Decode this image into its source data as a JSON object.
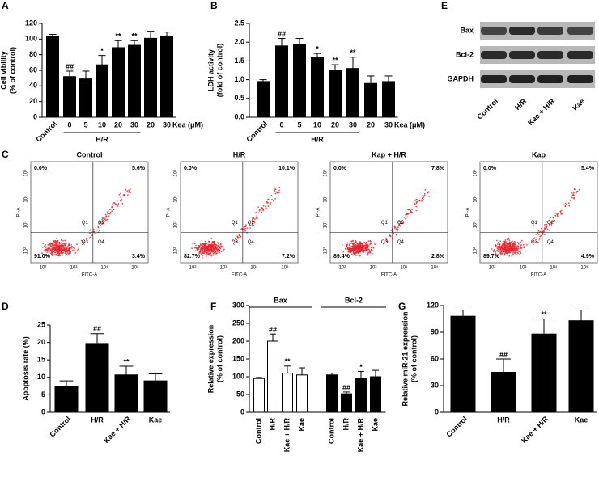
{
  "chart_data": [
    {
      "type": "bar",
      "panel": "A",
      "ylabel": [
        "Cell vibility",
        "(% of control)"
      ],
      "categories": [
        "Control",
        "0",
        "5",
        "10",
        "20",
        "30",
        "20",
        "30"
      ],
      "values": [
        103,
        52,
        49,
        67,
        89,
        92,
        101,
        104
      ],
      "errors": [
        3,
        7,
        10,
        12,
        9,
        6,
        9,
        5
      ],
      "annotations": [
        null,
        "##",
        null,
        "*",
        "**",
        "**",
        null,
        null
      ],
      "group_label": "H/R",
      "xlabel": "Kea (μM)",
      "color": "#000000",
      "ylim": [
        0,
        120
      ],
      "yticks": [
        0,
        20,
        40,
        60,
        80,
        100,
        120
      ]
    },
    {
      "type": "bar",
      "panel": "B",
      "ylabel": [
        "LDH activity",
        "(fold of control)"
      ],
      "categories": [
        "Control",
        "0",
        "5",
        "10",
        "20",
        "30",
        "20",
        "30"
      ],
      "values": [
        0.95,
        1.9,
        1.95,
        1.6,
        1.25,
        1.3,
        0.9,
        0.95
      ],
      "errors": [
        0.05,
        0.2,
        0.15,
        0.1,
        0.15,
        0.3,
        0.2,
        0.15
      ],
      "annotations": [
        null,
        "##",
        null,
        "*",
        "**",
        "**",
        null,
        null
      ],
      "group_label": "H/R",
      "xlabel": "Kea (μM)",
      "color": "#000000",
      "ylim": [
        0,
        2.5
      ],
      "yticks": [
        {
          "value": 0,
          "label": "0.0"
        },
        0.5,
        {
          "value": 1,
          "label": "1.0"
        },
        1.5,
        {
          "value": 2,
          "label": "2.0"
        },
        2.5
      ]
    },
    {
      "type": "blot",
      "panel": "E",
      "rows": [
        "Bax",
        "Bcl-2",
        "GAPDH"
      ],
      "lanes": [
        "Control",
        "H/R",
        "Kae + H/R",
        "Kae"
      ]
    },
    {
      "type": "flow",
      "panel": "C",
      "title": "Control",
      "quadrant_names": [
        "Q1",
        "Q2",
        "Q3",
        "Q4"
      ],
      "values": [
        0.0,
        5.6,
        91.0,
        3.4
      ],
      "value_labels": [
        "0.0%",
        "5.6%",
        "91.0%",
        "3.4%"
      ],
      "xlabel": "FITC-A",
      "ylabel": "PI-A",
      "xtick_labels": [
        "10²",
        "10³",
        "10⁴",
        "10⁵"
      ],
      "ytick_labels": [
        "10²",
        "10³",
        "10⁴",
        "10⁵"
      ]
    },
    {
      "type": "flow",
      "title": "H/R",
      "quadrant_names": [
        "Q1",
        "Q2",
        "Q3",
        "Q4"
      ],
      "values": [
        0.0,
        10.1,
        82.7,
        7.2
      ],
      "value_labels": [
        "0.0%",
        "10.1%",
        "82.7%",
        "7.2%"
      ],
      "xlabel": "FITC-A",
      "ylabel": "PI-A",
      "xtick_labels": [
        "10²",
        "10³",
        "10⁴",
        "10⁵"
      ],
      "ytick_labels": [
        "10²",
        "10³",
        "10⁴",
        "10⁵"
      ]
    },
    {
      "type": "flow",
      "title": "Kap + H/R",
      "quadrant_names": [
        "Q1",
        "Q2",
        "Q3",
        "Q4"
      ],
      "values": [
        0.0,
        7.8,
        89.4,
        2.8
      ],
      "value_labels": [
        "0.0%",
        "7.8%",
        "89.4%",
        "2.8%"
      ],
      "xlabel": "FITC-A",
      "ylabel": "PI-A",
      "xtick_labels": [
        "10²",
        "10³",
        "10⁴",
        "10⁵"
      ],
      "ytick_labels": [
        "10²",
        "10³",
        "10⁴",
        "10⁵"
      ]
    },
    {
      "type": "flow",
      "title": "Kap",
      "quadrant_names": [
        "Q1",
        "Q2",
        "Q3",
        "Q4"
      ],
      "values": [
        0.0,
        5.4,
        89.7,
        4.9
      ],
      "value_labels": [
        "0.0%",
        "5.4%",
        "89.7%",
        "4.9%"
      ],
      "xlabel": "FITC-A",
      "ylabel": "PI-A",
      "xtick_labels": [
        "10²",
        "10³",
        "10⁴",
        "10⁵"
      ],
      "ytick_labels": [
        "10²",
        "10³",
        "10⁴",
        "10⁵"
      ]
    },
    {
      "type": "bar",
      "panel": "D",
      "ylabel": "Apoptosis rate (%)",
      "categories": [
        "Control",
        "H/R",
        "Kae + H/R",
        "Kae"
      ],
      "values": [
        7.5,
        19.7,
        10.7,
        9.0
      ],
      "errors": [
        1.5,
        2.8,
        2.5,
        2.0
      ],
      "annotations": [
        null,
        "##",
        "**",
        null
      ],
      "color": "#000000",
      "ylim": [
        0,
        25
      ],
      "yticks": [
        0,
        5,
        10,
        15,
        20,
        25
      ]
    },
    {
      "type": "grouped",
      "panel": "F",
      "ylabel": [
        "Relative expression",
        "(% of control)"
      ],
      "categories": [
        "Control",
        "H/R",
        "Kae + H/R",
        "Kae"
      ],
      "series": [
        {
          "name": "Bax",
          "color": "#ffffff",
          "values": [
            95,
            200,
            110,
            105
          ],
          "errors": [
            3,
            20,
            20,
            20
          ],
          "annotations": [
            null,
            "##",
            "**",
            null
          ]
        },
        {
          "name": "Bcl-2",
          "color": "#000000",
          "values": [
            105,
            52,
            95,
            100
          ],
          "errors": [
            5,
            5,
            20,
            18
          ],
          "annotations": [
            null,
            "##",
            "*",
            null
          ]
        }
      ],
      "ylim": [
        0,
        300
      ],
      "yticks": [
        0,
        50,
        100,
        150,
        200,
        250,
        300
      ]
    },
    {
      "type": "bar",
      "panel": "G",
      "ylabel": [
        "Relative miR-21 expression",
        "(% of control)"
      ],
      "categories": [
        "Control",
        "H/R",
        "Kae + H/R",
        "Kae"
      ],
      "values": [
        108,
        45,
        88,
        103
      ],
      "errors": [
        7,
        15,
        17,
        12
      ],
      "annotations": [
        null,
        "##",
        "**",
        null
      ],
      "color": "#000000",
      "ylim": [
        0,
        120
      ],
      "yticks": [
        0,
        30,
        60,
        90,
        120
      ]
    }
  ]
}
